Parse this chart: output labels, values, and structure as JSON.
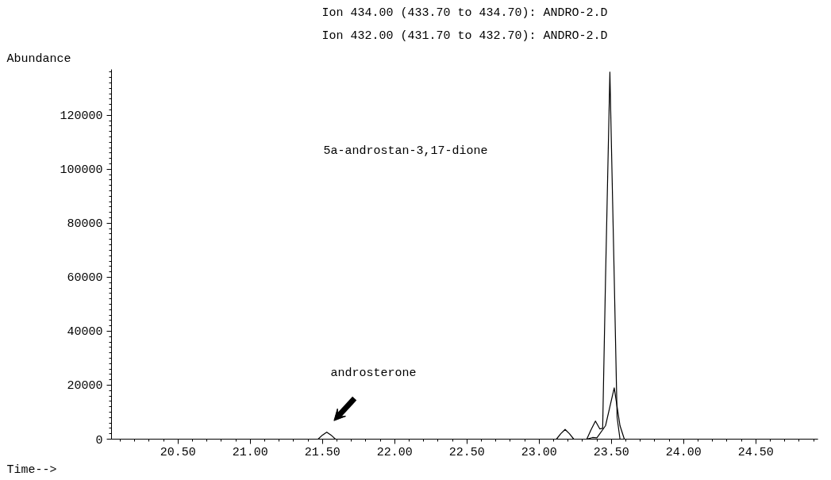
{
  "chart_data": {
    "type": "line",
    "title": "Ion 434.00 (433.70 to 434.70): ANDRO-2.D",
    "subtitle": "Ion 432.00 (431.70 to 432.70): ANDRO-2.D",
    "xlabel": "Time-->",
    "ylabel": "Abundance",
    "xlim": [
      20.04,
      24.93
    ],
    "ylim": [
      0,
      137000
    ],
    "xticks": [
      {
        "value": 20.5,
        "label": "20.50"
      },
      {
        "value": 21.0,
        "label": "21.00"
      },
      {
        "value": 21.5,
        "label": "21.50"
      },
      {
        "value": 22.0,
        "label": "22.00"
      },
      {
        "value": 22.5,
        "label": "22.50"
      },
      {
        "value": 23.0,
        "label": "23.00"
      },
      {
        "value": 23.5,
        "label": "23.50"
      },
      {
        "value": 24.0,
        "label": "24.00"
      },
      {
        "value": 24.5,
        "label": "24.50"
      }
    ],
    "yticks": [
      0,
      20000,
      40000,
      60000,
      80000,
      100000,
      120000
    ],
    "grid": false,
    "marker": "none",
    "line_style": "solid",
    "annotations": [
      "5a-androstan-3,17-dione",
      "androsterone"
    ],
    "series": [
      {
        "color": "#000000",
        "x": [
          20.04,
          21.47,
          21.5,
          21.53,
          21.56,
          21.59,
          23.12,
          23.15,
          23.18,
          23.21,
          23.24,
          23.33,
          23.36,
          23.39,
          23.42,
          23.44,
          23.46,
          23.49,
          23.52,
          23.54,
          23.56,
          24.93
        ],
        "values": [
          0,
          0,
          1500,
          2600,
          1500,
          0,
          0,
          2000,
          3600,
          2000,
          0,
          0,
          3500,
          6700,
          3800,
          4000,
          60000,
          136000,
          60000,
          8000,
          0,
          0
        ]
      },
      {
        "color": "#000000",
        "x": [
          20.04,
          23.33,
          23.37,
          23.4,
          23.46,
          23.52,
          23.56,
          23.59,
          24.93
        ],
        "values": [
          0,
          0,
          600,
          500,
          5000,
          19000,
          5000,
          0,
          0
        ]
      }
    ]
  }
}
